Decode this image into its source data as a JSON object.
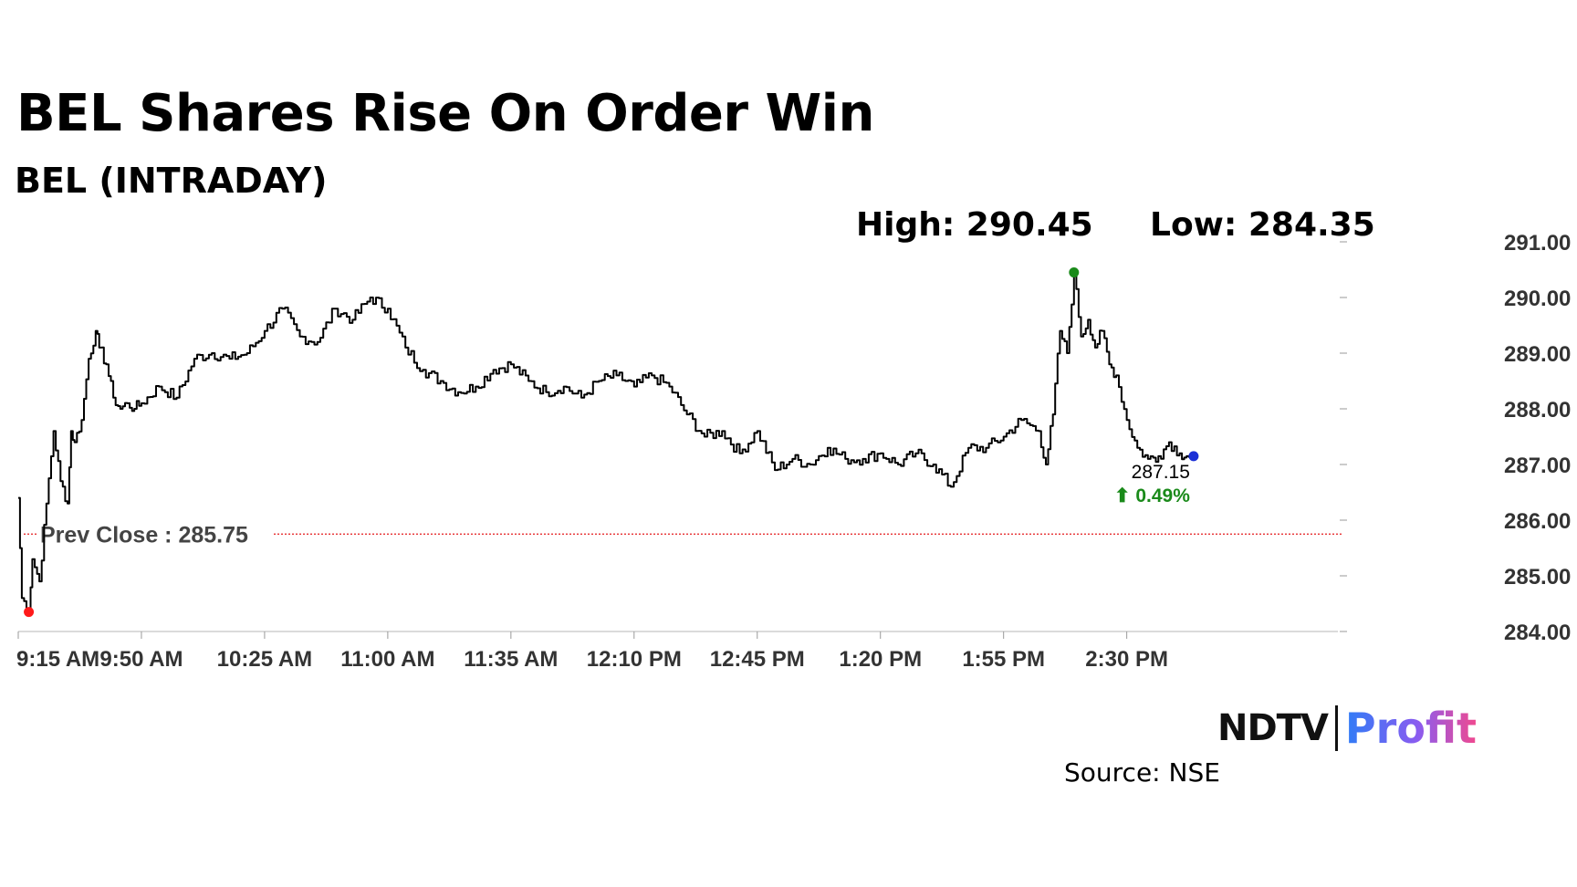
{
  "header": {
    "title": "BEL Shares Rise On Order Win",
    "subtitle": "BEL (INTRADAY)",
    "high_label": "High: 290.45",
    "low_label": "Low: 284.35"
  },
  "footer": {
    "source": "Source: NSE",
    "logo_ndtv": "NDTV",
    "logo_profit": "Profit"
  },
  "colors": {
    "line": "#000000",
    "prev_close": "#e41a1c",
    "high_marker": "#1a8a1a",
    "low_marker": "#ff1a1a",
    "last_marker": "#1a2fd6",
    "change_up": "#1a8a1a",
    "axis_text": "#333333"
  },
  "chart_data": {
    "type": "line",
    "ylim": [
      284.0,
      291.0
    ],
    "yticks": [
      284.0,
      285.0,
      286.0,
      287.0,
      288.0,
      289.0,
      290.0,
      291.0
    ],
    "ytick_labels": [
      "284.00",
      "285.00",
      "286.00",
      "287.00",
      "288.00",
      "289.00",
      "290.00",
      "291.00"
    ],
    "xlim": [
      "9:15 AM",
      "3:30 PM"
    ],
    "xticks": [
      "9:15 AM",
      "9:50 AM",
      "10:25 AM",
      "11:00 AM",
      "11:35 AM",
      "12:10 PM",
      "12:45 PM",
      "1:20 PM",
      "1:55 PM",
      "2:30 PM"
    ],
    "series": [
      {
        "x": [
          "9:15 AM",
          "9:16 AM",
          "9:18 AM",
          "9:19 AM",
          "9:21 AM",
          "9:23 AM",
          "9:25 AM",
          "9:27 AM",
          "9:29 AM",
          "9:30 AM",
          "9:31 AM",
          "9:33 AM",
          "9:35 AM",
          "9:37 AM",
          "9:38 AM",
          "9:40 AM",
          "9:42 AM",
          "9:44 AM",
          "9:46 AM",
          "9:48 AM",
          "9:50 AM",
          "9:55 AM",
          "10:00 AM",
          "10:05 AM",
          "10:10 AM",
          "10:15 AM",
          "10:20 AM",
          "10:25 AM",
          "10:30 AM",
          "10:35 AM",
          "10:40 AM",
          "10:45 AM",
          "10:50 AM",
          "10:55 AM",
          "11:00 AM",
          "11:05 AM",
          "11:10 AM",
          "11:15 AM",
          "11:20 AM",
          "11:25 AM",
          "11:30 AM",
          "11:35 AM",
          "11:40 AM",
          "11:45 AM",
          "11:50 AM",
          "11:55 AM",
          "12:00 PM",
          "12:05 PM",
          "12:10 PM",
          "12:15 PM",
          "12:20 PM",
          "12:25 PM",
          "12:30 PM",
          "12:35 PM",
          "12:40 PM",
          "12:45 PM",
          "12:50 PM",
          "12:55 PM",
          "1:00 PM",
          "1:05 PM",
          "1:10 PM",
          "1:15 PM",
          "1:20 PM",
          "1:25 PM",
          "1:30 PM",
          "1:35 PM",
          "1:40 PM",
          "1:45 PM",
          "1:50 PM",
          "1:55 PM",
          "2:00 PM",
          "2:05 PM",
          "2:07 PM",
          "2:09 PM",
          "2:11 PM",
          "2:13 PM",
          "2:15 PM",
          "2:17 PM",
          "2:19 PM",
          "2:21 PM",
          "2:23 PM",
          "2:25 PM",
          "2:27 PM",
          "2:30 PM",
          "2:33 PM",
          "2:36 PM",
          "2:39 PM",
          "2:42 PM",
          "2:45 PM",
          "2:47 PM",
          "2:49 PM"
        ],
        "values": [
          286.4,
          284.6,
          284.4,
          285.3,
          284.9,
          286.3,
          287.6,
          286.7,
          286.3,
          287.6,
          287.4,
          287.8,
          288.9,
          289.4,
          289.1,
          288.8,
          288.2,
          288.0,
          288.1,
          288.0,
          288.1,
          288.4,
          288.2,
          288.9,
          289.0,
          288.9,
          289.0,
          289.4,
          289.8,
          289.3,
          289.2,
          289.8,
          289.6,
          290.0,
          289.8,
          289.1,
          288.7,
          288.5,
          288.3,
          288.4,
          288.7,
          288.8,
          288.5,
          288.3,
          288.4,
          288.2,
          288.5,
          288.6,
          288.4,
          288.6,
          288.4,
          287.9,
          287.5,
          287.6,
          287.2,
          287.6,
          286.9,
          287.1,
          287.0,
          287.3,
          287.1,
          287.1,
          287.2,
          287.0,
          287.2,
          287.0,
          286.6,
          287.3,
          287.3,
          287.5,
          287.8,
          287.6,
          287.0,
          287.9,
          289.4,
          289.0,
          290.45,
          289.3,
          289.6,
          289.1,
          289.4,
          288.8,
          288.6,
          287.8,
          287.3,
          287.1,
          287.15,
          287.4,
          287.2,
          287.15,
          287.15
        ]
      }
    ],
    "prev_close": {
      "label": "Prev Close : 285.75",
      "value": 285.75
    },
    "high_point": {
      "x": "2:15 PM",
      "value": 290.45
    },
    "low_point": {
      "x": "9:18 AM",
      "value": 284.35
    },
    "last_point": {
      "x": "2:49 PM",
      "value": 287.15,
      "label": "287.15",
      "change_label": "⬆ 0.49%"
    },
    "grid": false
  }
}
